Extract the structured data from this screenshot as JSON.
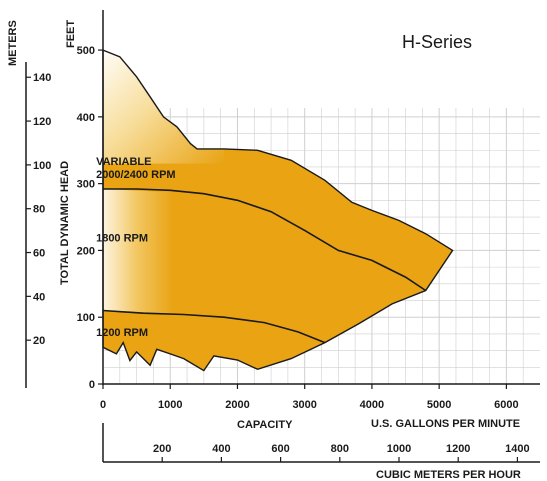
{
  "colors": {
    "fill": "#e9a313",
    "fill_light": "#fffaf0",
    "grid": "#cfcfcf",
    "axis": "#1a1a1a",
    "text": "#1a1a1a"
  },
  "chart_data": {
    "type": "area",
    "title": "H-Series",
    "xlabel": "CAPACITY",
    "x_unit_label": "U.S. GALLONS PER MINUTE",
    "x2_unit_label": "CUBIC METERS PER HOUR",
    "ylabel": "TOTAL DYNAMIC HEAD",
    "y_unit_label": "FEET",
    "y2_unit_label": "METERS",
    "xlim": [
      0,
      6500
    ],
    "ylim": [
      0,
      560
    ],
    "x_ticks": [
      0,
      1000,
      2000,
      3000,
      4000,
      5000,
      6000
    ],
    "y_ticks": [
      0,
      100,
      200,
      300,
      400,
      500
    ],
    "x2_ticks": [
      200,
      400,
      600,
      800,
      1000,
      1200,
      1400
    ],
    "y2_ticks": [
      20,
      40,
      60,
      80,
      100,
      120,
      140
    ],
    "grid": true,
    "series": [
      {
        "name": "VARIABLE 2000/2400 RPM",
        "label_lines": [
          "VARIABLE",
          "2000/2400 RPM"
        ],
        "label_pos": [
          150,
          328
        ],
        "boundary": [
          {
            "x": 0,
            "y": 500
          },
          {
            "x": 250,
            "y": 490
          },
          {
            "x": 500,
            "y": 460
          },
          {
            "x": 700,
            "y": 430
          },
          {
            "x": 900,
            "y": 400
          },
          {
            "x": 1100,
            "y": 385
          },
          {
            "x": 1300,
            "y": 360
          },
          {
            "x": 1400,
            "y": 352
          },
          {
            "x": 1800,
            "y": 352
          },
          {
            "x": 2300,
            "y": 350
          },
          {
            "x": 2800,
            "y": 335
          },
          {
            "x": 3300,
            "y": 305
          },
          {
            "x": 3700,
            "y": 272
          },
          {
            "x": 4000,
            "y": 260
          },
          {
            "x": 4400,
            "y": 245
          },
          {
            "x": 4800,
            "y": 225
          },
          {
            "x": 5200,
            "y": 200
          }
        ]
      },
      {
        "name": "1800 RPM",
        "label_lines": [
          "1800 RPM"
        ],
        "label_pos": [
          150,
          213
        ],
        "boundary": [
          {
            "x": 0,
            "y": 292
          },
          {
            "x": 500,
            "y": 292
          },
          {
            "x": 1000,
            "y": 290
          },
          {
            "x": 1500,
            "y": 285
          },
          {
            "x": 2000,
            "y": 275
          },
          {
            "x": 2500,
            "y": 258
          },
          {
            "x": 3000,
            "y": 230
          },
          {
            "x": 3500,
            "y": 200
          },
          {
            "x": 4000,
            "y": 185
          },
          {
            "x": 4500,
            "y": 160
          },
          {
            "x": 4800,
            "y": 140
          }
        ]
      },
      {
        "name": "1200 RPM",
        "label_lines": [
          "1200 RPM"
        ],
        "label_pos": [
          150,
          72
        ],
        "boundary": [
          {
            "x": 0,
            "y": 110
          },
          {
            "x": 600,
            "y": 106
          },
          {
            "x": 1200,
            "y": 104
          },
          {
            "x": 1800,
            "y": 100
          },
          {
            "x": 2400,
            "y": 92
          },
          {
            "x": 2900,
            "y": 78
          },
          {
            "x": 3300,
            "y": 62
          }
        ]
      }
    ],
    "lower_boundary": [
      {
        "x": 0,
        "y": 55
      },
      {
        "x": 200,
        "y": 45
      },
      {
        "x": 300,
        "y": 62
      },
      {
        "x": 400,
        "y": 35
      },
      {
        "x": 500,
        "y": 48
      },
      {
        "x": 700,
        "y": 28
      },
      {
        "x": 800,
        "y": 52
      },
      {
        "x": 1000,
        "y": 45
      },
      {
        "x": 1200,
        "y": 38
      },
      {
        "x": 1500,
        "y": 20
      },
      {
        "x": 1650,
        "y": 42
      },
      {
        "x": 2000,
        "y": 36
      },
      {
        "x": 2300,
        "y": 22
      },
      {
        "x": 2800,
        "y": 38
      },
      {
        "x": 3300,
        "y": 62
      },
      {
        "x": 3800,
        "y": 90
      },
      {
        "x": 4300,
        "y": 120
      },
      {
        "x": 4800,
        "y": 140
      }
    ]
  }
}
